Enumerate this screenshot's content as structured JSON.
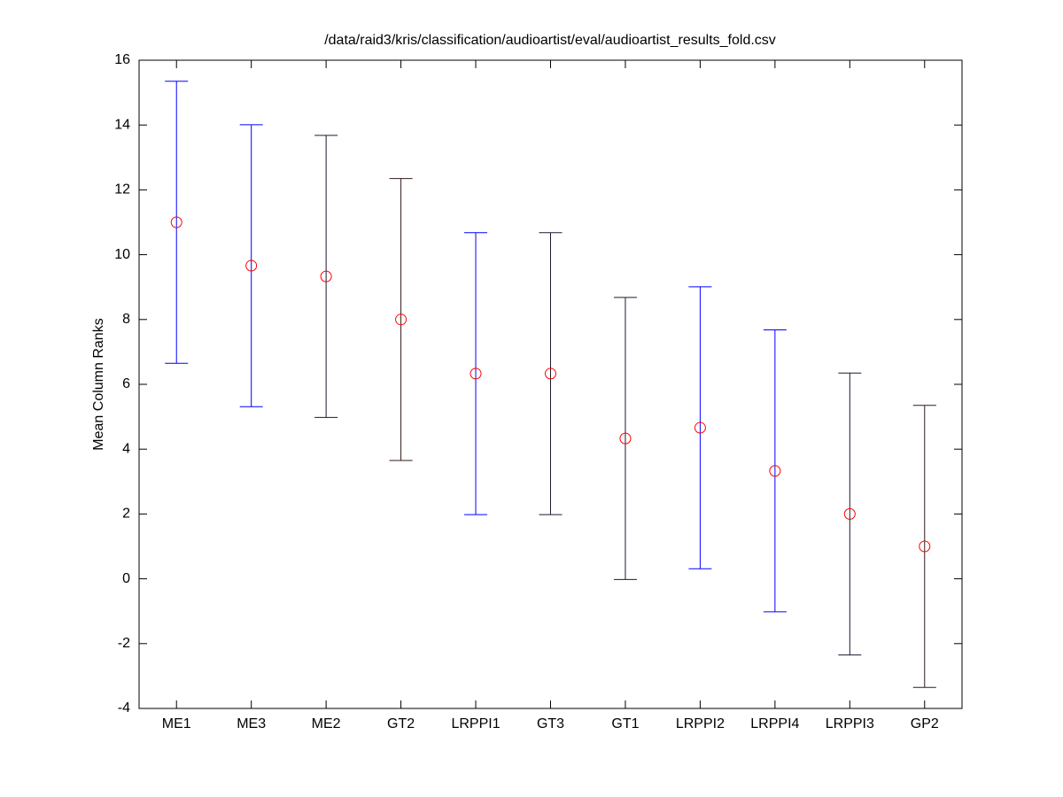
{
  "chart_data": {
    "type": "errorbar",
    "title": "/data/raid3/kris/classification/audioartist/eval/audioartist_results_fold.csv",
    "ylabel": "Mean Column Ranks",
    "categories": [
      "ME1",
      "ME3",
      "ME2",
      "GT2",
      "LRPPI1",
      "GT3",
      "GT1",
      "LRPPI2",
      "LRPPI4",
      "LRPPI3",
      "GP2"
    ],
    "values": [
      11.0,
      9.66,
      9.33,
      8.0,
      6.33,
      6.33,
      4.33,
      4.66,
      3.33,
      2.0,
      1.0
    ],
    "errors": [
      4.35,
      4.35,
      4.35,
      4.35,
      4.35,
      4.35,
      4.35,
      4.35,
      4.35,
      4.35,
      4.35
    ],
    "colors": [
      "#0000ff",
      "#0000ff",
      "#1a1a33",
      "#331a1a",
      "#0000ff",
      "#1a1a33",
      "#1a1a33",
      "#0000ff",
      "#0000ff",
      "#1a1a33",
      "#331a1a"
    ],
    "marker_color": "#ff0000",
    "ylim": [
      -4,
      16
    ],
    "yticks": [
      -4,
      -2,
      0,
      2,
      4,
      6,
      8,
      10,
      12,
      14,
      16
    ]
  }
}
